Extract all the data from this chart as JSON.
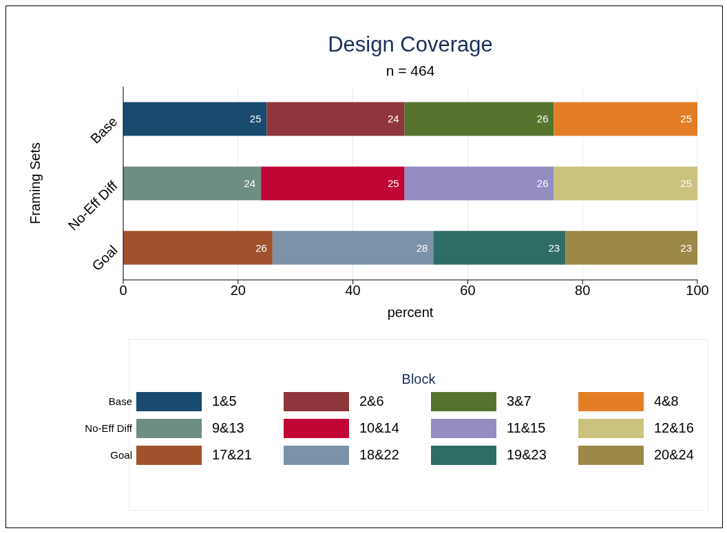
{
  "chart_data": {
    "type": "bar",
    "orientation": "horizontal",
    "stacked": true,
    "title": "Design Coverage",
    "subtitle": "n = 464",
    "xlabel": "percent",
    "ylabel": "Framing Sets",
    "legend_title": "Block",
    "categories": [
      "Base",
      "No-Eff Diff",
      "Goal"
    ],
    "series": [
      {
        "name": "1&5",
        "color": "#1a4a6e",
        "values": [
          25,
          null,
          null
        ]
      },
      {
        "name": "2&6",
        "color": "#90353b",
        "values": [
          24,
          null,
          null
        ]
      },
      {
        "name": "3&7",
        "color": "#55752f",
        "values": [
          26,
          null,
          null
        ]
      },
      {
        "name": "4&8",
        "color": "#e37e26",
        "values": [
          25,
          null,
          null
        ]
      },
      {
        "name": "9&13",
        "color": "#6e8e84",
        "values": [
          null,
          24,
          null
        ]
      },
      {
        "name": "10&14",
        "color": "#c10534",
        "values": [
          null,
          25,
          null
        ]
      },
      {
        "name": "11&15",
        "color": "#938dc2",
        "values": [
          null,
          26,
          null
        ]
      },
      {
        "name": "12&16",
        "color": "#cac27e",
        "values": [
          null,
          25,
          null
        ]
      },
      {
        "name": "17&21",
        "color": "#a0522d",
        "values": [
          null,
          null,
          26
        ]
      },
      {
        "name": "18&22",
        "color": "#7b92a8",
        "values": [
          null,
          null,
          28
        ]
      },
      {
        "name": "19&23",
        "color": "#2d6d66",
        "values": [
          null,
          null,
          23
        ]
      },
      {
        "name": "20&24",
        "color": "#9c8847",
        "values": [
          null,
          null,
          23
        ]
      }
    ],
    "xlim": [
      0,
      100
    ],
    "xticks": [
      0,
      20,
      40,
      60,
      80,
      100
    ],
    "grid": "x",
    "legend": "bottom",
    "data_labels": true
  }
}
